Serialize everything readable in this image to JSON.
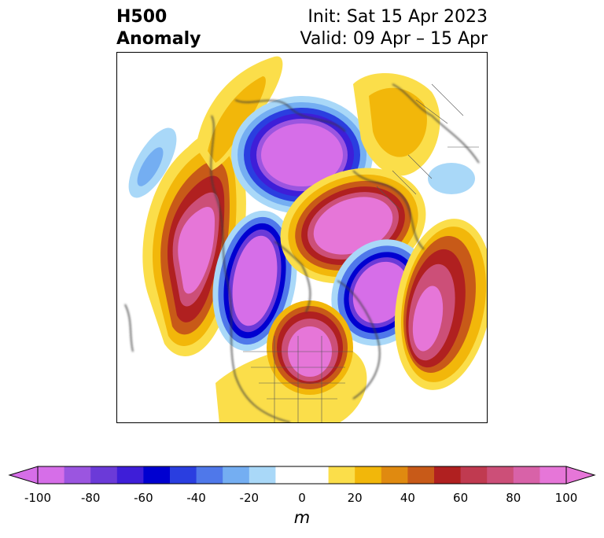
{
  "title": {
    "left_line1": "H500",
    "left_line2": "Anomaly",
    "right_line1": "Init: Sat 15 Apr 2023",
    "right_line2": "Valid: 09 Apr – 15 Apr"
  },
  "colorbar": {
    "unit": "m",
    "ticks": [
      "-100",
      "-80",
      "-60",
      "-40",
      "-20",
      "0",
      "20",
      "40",
      "60",
      "80",
      "100"
    ],
    "colors": [
      "#d66ee8",
      "#9b55e0",
      "#6b3ad8",
      "#3e1ed8",
      "#0000d0",
      "#2a3ee0",
      "#4f78ea",
      "#74aef2",
      "#a9d8f8",
      "#ffffff",
      "#ffffff",
      "#fbde4a",
      "#f2b70a",
      "#e08a10",
      "#c85a18",
      "#b02020",
      "#c03a50",
      "#cc4f78",
      "#d862a8",
      "#e676d8"
    ],
    "extend_low": "#d66ee8",
    "extend_high": "#e676d8"
  }
}
